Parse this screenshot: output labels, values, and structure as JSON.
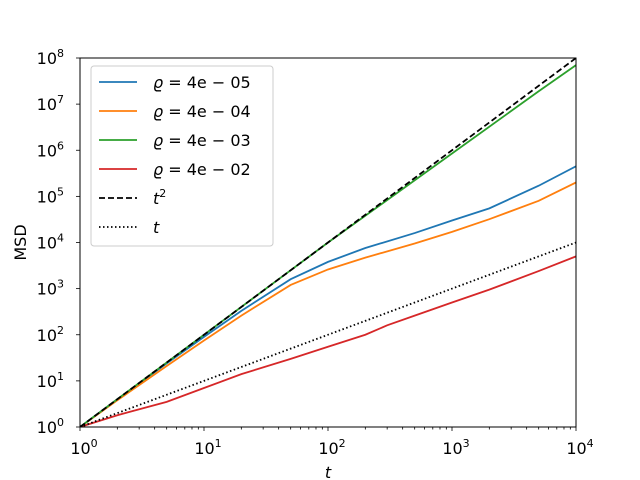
{
  "chart_data": {
    "type": "line",
    "title": "",
    "xlabel": "t",
    "ylabel": "MSD",
    "xscale": "log",
    "yscale": "log",
    "xlim": [
      1,
      10000
    ],
    "ylim": [
      1,
      100000000
    ],
    "grid": false,
    "legend_position": "top-left",
    "x_ticks": [
      {
        "value": 1,
        "base": "10",
        "exp": "0"
      },
      {
        "value": 10,
        "base": "10",
        "exp": "1"
      },
      {
        "value": 100,
        "base": "10",
        "exp": "2"
      },
      {
        "value": 1000,
        "base": "10",
        "exp": "3"
      },
      {
        "value": 10000,
        "base": "10",
        "exp": "4"
      }
    ],
    "y_ticks": [
      {
        "value": 1,
        "base": "10",
        "exp": "0"
      },
      {
        "value": 10,
        "base": "10",
        "exp": "1"
      },
      {
        "value": 100,
        "base": "10",
        "exp": "2"
      },
      {
        "value": 1000,
        "base": "10",
        "exp": "3"
      },
      {
        "value": 10000,
        "base": "10",
        "exp": "4"
      },
      {
        "value": 100000,
        "base": "10",
        "exp": "5"
      },
      {
        "value": 1000000,
        "base": "10",
        "exp": "6"
      },
      {
        "value": 10000000,
        "base": "10",
        "exp": "7"
      },
      {
        "value": 100000000,
        "base": "10",
        "exp": "8"
      }
    ],
    "series": [
      {
        "name": "ϱ = 4e − 05",
        "name_symbol": "ϱ",
        "name_rest": " = 4e − 05",
        "color": "#1f77b4",
        "dash": "solid",
        "points": [
          [
            1,
            1
          ],
          [
            2,
            4
          ],
          [
            5,
            24
          ],
          [
            10,
            90
          ],
          [
            20,
            330
          ],
          [
            50,
            1600
          ],
          [
            100,
            3800
          ],
          [
            200,
            7600
          ],
          [
            500,
            16000
          ],
          [
            1000,
            30000
          ],
          [
            2000,
            55000
          ],
          [
            5000,
            170000
          ],
          [
            10000,
            450000
          ]
        ]
      },
      {
        "name": "ϱ = 4e − 04",
        "name_symbol": "ϱ",
        "name_rest": " = 4e − 04",
        "color": "#ff7f0e",
        "dash": "solid",
        "points": [
          [
            1,
            1
          ],
          [
            2,
            3.8
          ],
          [
            5,
            21
          ],
          [
            10,
            75
          ],
          [
            20,
            260
          ],
          [
            50,
            1200
          ],
          [
            100,
            2600
          ],
          [
            200,
            4700
          ],
          [
            500,
            9500
          ],
          [
            1000,
            17000
          ],
          [
            2000,
            32000
          ],
          [
            5000,
            80000
          ],
          [
            10000,
            200000
          ]
        ]
      },
      {
        "name": "ϱ = 4e − 03",
        "name_symbol": "ϱ",
        "name_rest": " = 4e − 03",
        "color": "#2ca02c",
        "dash": "solid",
        "points": [
          [
            1,
            1
          ],
          [
            10,
            100
          ],
          [
            100,
            10000
          ],
          [
            1000,
            850000
          ],
          [
            5000,
            19000000
          ],
          [
            10000,
            70000000
          ]
        ]
      },
      {
        "name": "ϱ = 4e − 02",
        "name_symbol": "ϱ",
        "name_rest": " = 4e − 02",
        "color": "#d62728",
        "dash": "solid",
        "points": [
          [
            1,
            1
          ],
          [
            2,
            1.8
          ],
          [
            5,
            3.5
          ],
          [
            10,
            7
          ],
          [
            20,
            14
          ],
          [
            50,
            30
          ],
          [
            100,
            55
          ],
          [
            200,
            100
          ],
          [
            300,
            160
          ],
          [
            500,
            260
          ],
          [
            1000,
            500
          ],
          [
            2000,
            950
          ],
          [
            5000,
            2400
          ],
          [
            10000,
            5000
          ]
        ]
      },
      {
        "name": "t²",
        "name_symbol": "t",
        "name_sup": "2",
        "color": "#000000",
        "dash": "dashed",
        "points": [
          [
            1,
            1
          ],
          [
            10000,
            100000000
          ]
        ]
      },
      {
        "name": "t",
        "name_symbol": "t",
        "color": "#000000",
        "dash": "dotted",
        "points": [
          [
            1,
            1
          ],
          [
            10000,
            10000
          ]
        ]
      }
    ]
  }
}
